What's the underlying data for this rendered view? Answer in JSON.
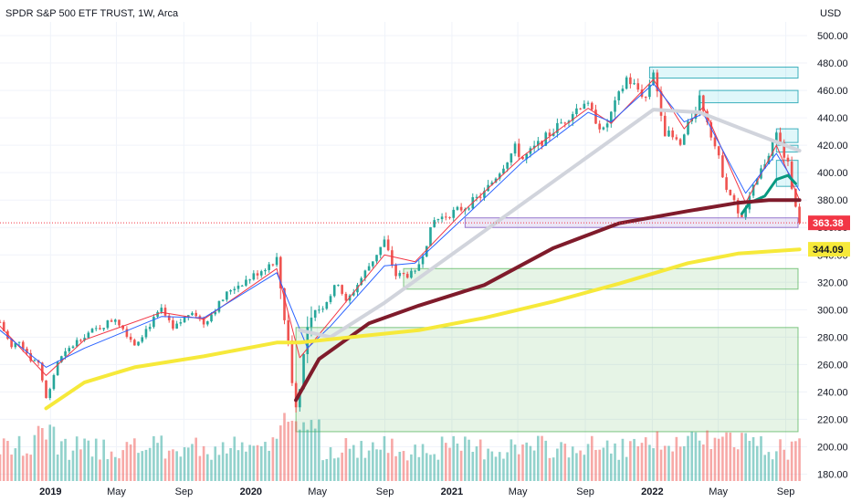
{
  "chart_data": {
    "type": "candlestick",
    "title": "SPDR S&P 500 ETF TRUST, 1W, Arca",
    "currency": "USD",
    "y_ticks": [
      180,
      200,
      220,
      240,
      260,
      280,
      300,
      320,
      340,
      360,
      380,
      400,
      420,
      440,
      460,
      480,
      500
    ],
    "y_tick_labels": [
      "180.00",
      "200.00",
      "220.00",
      "240.00",
      "260.00",
      "280.00",
      "300.00",
      "320.00",
      "340.00",
      "360.00",
      "380.00",
      "400.00",
      "420.00",
      "440.00",
      "460.00",
      "480.00",
      "500.00"
    ],
    "ylim": [
      175,
      510
    ],
    "x_range": [
      "2018-10-01",
      "2022-10-10"
    ],
    "x_ticks": [
      {
        "date": "2019-01-01",
        "label": "2019",
        "major": true
      },
      {
        "date": "2019-05-01",
        "label": "May",
        "major": false
      },
      {
        "date": "2019-09-01",
        "label": "Sep",
        "major": false
      },
      {
        "date": "2020-01-01",
        "label": "2020",
        "major": true
      },
      {
        "date": "2020-05-01",
        "label": "May",
        "major": false
      },
      {
        "date": "2020-09-01",
        "label": "Sep",
        "major": false
      },
      {
        "date": "2021-01-01",
        "label": "2021",
        "major": true
      },
      {
        "date": "2021-05-01",
        "label": "May",
        "major": false
      },
      {
        "date": "2021-09-01",
        "label": "Sep",
        "major": false
      },
      {
        "date": "2022-01-01",
        "label": "2022",
        "major": true
      },
      {
        "date": "2022-05-01",
        "label": "May",
        "major": false
      },
      {
        "date": "2022-09-01",
        "label": "Sep",
        "major": false
      }
    ],
    "price_anchors": [
      [
        "2018-10-01",
        291
      ],
      [
        "2018-10-22",
        272
      ],
      [
        "2018-11-05",
        278
      ],
      [
        "2018-11-26",
        264
      ],
      [
        "2018-12-10",
        262
      ],
      [
        "2018-12-24",
        235
      ],
      [
        "2019-01-14",
        262
      ],
      [
        "2019-02-25",
        280
      ],
      [
        "2019-04-01",
        287
      ],
      [
        "2019-04-29",
        294
      ],
      [
        "2019-06-03",
        275
      ],
      [
        "2019-07-22",
        300
      ],
      [
        "2019-08-12",
        285
      ],
      [
        "2019-09-16",
        300
      ],
      [
        "2019-10-07",
        290
      ],
      [
        "2019-11-25",
        315
      ],
      [
        "2019-12-30",
        323
      ],
      [
        "2020-02-17",
        337
      ],
      [
        "2020-03-02",
        296
      ],
      [
        "2020-03-23",
        228
      ],
      [
        "2020-04-13",
        285
      ],
      [
        "2020-06-08",
        320
      ],
      [
        "2020-06-22",
        305
      ],
      [
        "2020-08-31",
        350
      ],
      [
        "2020-09-21",
        325
      ],
      [
        "2020-10-26",
        326
      ],
      [
        "2020-11-30",
        365
      ],
      [
        "2021-01-25",
        375
      ],
      [
        "2021-03-01",
        385
      ],
      [
        "2021-04-26",
        418
      ],
      [
        "2021-05-10",
        410
      ],
      [
        "2021-08-30",
        452
      ],
      [
        "2021-10-04",
        430
      ],
      [
        "2021-11-15",
        469
      ],
      [
        "2021-12-20",
        455
      ],
      [
        "2022-01-03",
        475
      ],
      [
        "2022-01-24",
        430
      ],
      [
        "2022-02-21",
        420
      ],
      [
        "2022-03-28",
        455
      ],
      [
        "2022-04-11",
        439
      ],
      [
        "2022-05-16",
        390
      ],
      [
        "2022-06-13",
        366
      ],
      [
        "2022-07-04",
        388
      ],
      [
        "2022-08-15",
        428
      ],
      [
        "2022-09-05",
        405
      ],
      [
        "2022-09-26",
        364
      ]
    ],
    "last_week": "2022-09-26",
    "volume_range": [
      0,
      60
    ],
    "moving_averages": [
      {
        "color": "#f23645",
        "width": 1,
        "points": [
          [
            "2018-10-01",
            288
          ],
          [
            "2018-12-24",
            252
          ],
          [
            "2019-03-04",
            278
          ],
          [
            "2019-07-22",
            298
          ],
          [
            "2019-10-07",
            293
          ],
          [
            "2020-02-17",
            330
          ],
          [
            "2020-03-30",
            265
          ],
          [
            "2020-05-25",
            292
          ],
          [
            "2020-08-31",
            340
          ],
          [
            "2020-10-26",
            335
          ],
          [
            "2021-01-25",
            373
          ],
          [
            "2021-05-10",
            412
          ],
          [
            "2021-09-06",
            447
          ],
          [
            "2021-10-18",
            436
          ],
          [
            "2022-01-03",
            468
          ],
          [
            "2022-02-28",
            432
          ],
          [
            "2022-04-04",
            448
          ],
          [
            "2022-06-20",
            378
          ],
          [
            "2022-08-15",
            420
          ],
          [
            "2022-09-26",
            380
          ]
        ]
      },
      {
        "color": "#2962ff",
        "width": 1,
        "points": [
          [
            "2018-10-01",
            285
          ],
          [
            "2018-12-24",
            258
          ],
          [
            "2019-03-04",
            272
          ],
          [
            "2019-07-22",
            295
          ],
          [
            "2019-10-07",
            294
          ],
          [
            "2020-02-17",
            327
          ],
          [
            "2020-04-13",
            272
          ],
          [
            "2020-05-25",
            288
          ],
          [
            "2020-08-31",
            332
          ],
          [
            "2020-10-26",
            334
          ],
          [
            "2021-01-25",
            368
          ],
          [
            "2021-05-10",
            408
          ],
          [
            "2021-09-06",
            444
          ],
          [
            "2021-10-18",
            437
          ],
          [
            "2022-01-03",
            465
          ],
          [
            "2022-02-28",
            437
          ],
          [
            "2022-04-04",
            443
          ],
          [
            "2022-06-20",
            385
          ],
          [
            "2022-08-15",
            414
          ],
          [
            "2022-09-26",
            387
          ]
        ]
      },
      {
        "color": "#d1d4dc",
        "width": 4,
        "points": [
          [
            "2020-03-30",
            285
          ],
          [
            "2020-05-25",
            280
          ],
          [
            "2020-08-31",
            305
          ],
          [
            "2022-01-03",
            446
          ],
          [
            "2022-03-28",
            444
          ],
          [
            "2022-06-13",
            432
          ],
          [
            "2022-09-26",
            416
          ]
        ]
      },
      {
        "color": "#089981",
        "width": 3,
        "points": [
          [
            "2022-06-13",
            370
          ],
          [
            "2022-06-27",
            378
          ],
          [
            "2022-07-25",
            383
          ],
          [
            "2022-08-15",
            395
          ],
          [
            "2022-09-05",
            398
          ],
          [
            "2022-09-19",
            392
          ]
        ]
      },
      {
        "color": "#7f1b2b",
        "width": 4,
        "points": [
          [
            "2020-03-23",
            234
          ],
          [
            "2020-05-04",
            264
          ],
          [
            "2020-08-03",
            290
          ],
          [
            "2020-11-02",
            303
          ],
          [
            "2021-03-01",
            318
          ],
          [
            "2021-07-05",
            345
          ],
          [
            "2021-11-01",
            363
          ],
          [
            "2022-03-07",
            372
          ],
          [
            "2022-06-06",
            378
          ],
          [
            "2022-08-01",
            380
          ],
          [
            "2022-09-26",
            380
          ]
        ]
      },
      {
        "color": "#f6e93a",
        "width": 4,
        "points": [
          [
            "2018-12-24",
            228
          ],
          [
            "2019-03-04",
            247
          ],
          [
            "2019-06-03",
            258
          ],
          [
            "2019-10-07",
            266
          ],
          [
            "2020-02-17",
            276
          ],
          [
            "2020-03-30",
            276
          ],
          [
            "2020-07-27",
            281
          ],
          [
            "2020-11-02",
            285
          ],
          [
            "2021-03-01",
            294
          ],
          [
            "2021-07-05",
            306
          ],
          [
            "2021-11-01",
            319
          ],
          [
            "2022-03-07",
            334
          ],
          [
            "2022-06-06",
            341
          ],
          [
            "2022-09-26",
            344
          ]
        ]
      }
    ],
    "zones": [
      {
        "type": "support",
        "color": "green",
        "x0": "2020-03-23",
        "x1": "2022-10-10",
        "y0": 211,
        "y1": 287
      },
      {
        "type": "support",
        "color": "green",
        "x0": "2020-10-05",
        "x1": "2022-10-10",
        "y0": 315,
        "y1": 330
      },
      {
        "type": "support",
        "color": "purple",
        "x0": "2021-01-25",
        "x1": "2022-10-10",
        "y0": 360,
        "y1": 367
      },
      {
        "type": "resistance",
        "color": "cyan",
        "x0": "2021-12-27",
        "x1": "2022-10-10",
        "y0": 469,
        "y1": 477
      },
      {
        "type": "resistance",
        "color": "cyan",
        "x0": "2022-03-28",
        "x1": "2022-10-10",
        "y0": 451,
        "y1": 460
      },
      {
        "type": "resistance",
        "color": "cyan",
        "x0": "2022-08-15",
        "x1": "2022-10-10",
        "y0": 422,
        "y1": 432
      },
      {
        "type": "resistance",
        "color": "cyan",
        "x0": "2022-08-15",
        "x1": "2022-10-10",
        "y0": 415,
        "y1": 420
      },
      {
        "type": "resistance",
        "color": "cyan",
        "x0": "2022-08-15",
        "x1": "2022-10-10",
        "y0": 390,
        "y1": 409
      }
    ],
    "price_labels": [
      {
        "value": 363.38,
        "label": "363.38",
        "bg": "#f23645"
      },
      {
        "value": 344.09,
        "label": "344.09",
        "bg": "#f6e93a"
      }
    ],
    "current_price_line": 363.38,
    "colors": {
      "up": "#26a69a",
      "down": "#ef5350",
      "grid": "#f0f3fa"
    }
  }
}
